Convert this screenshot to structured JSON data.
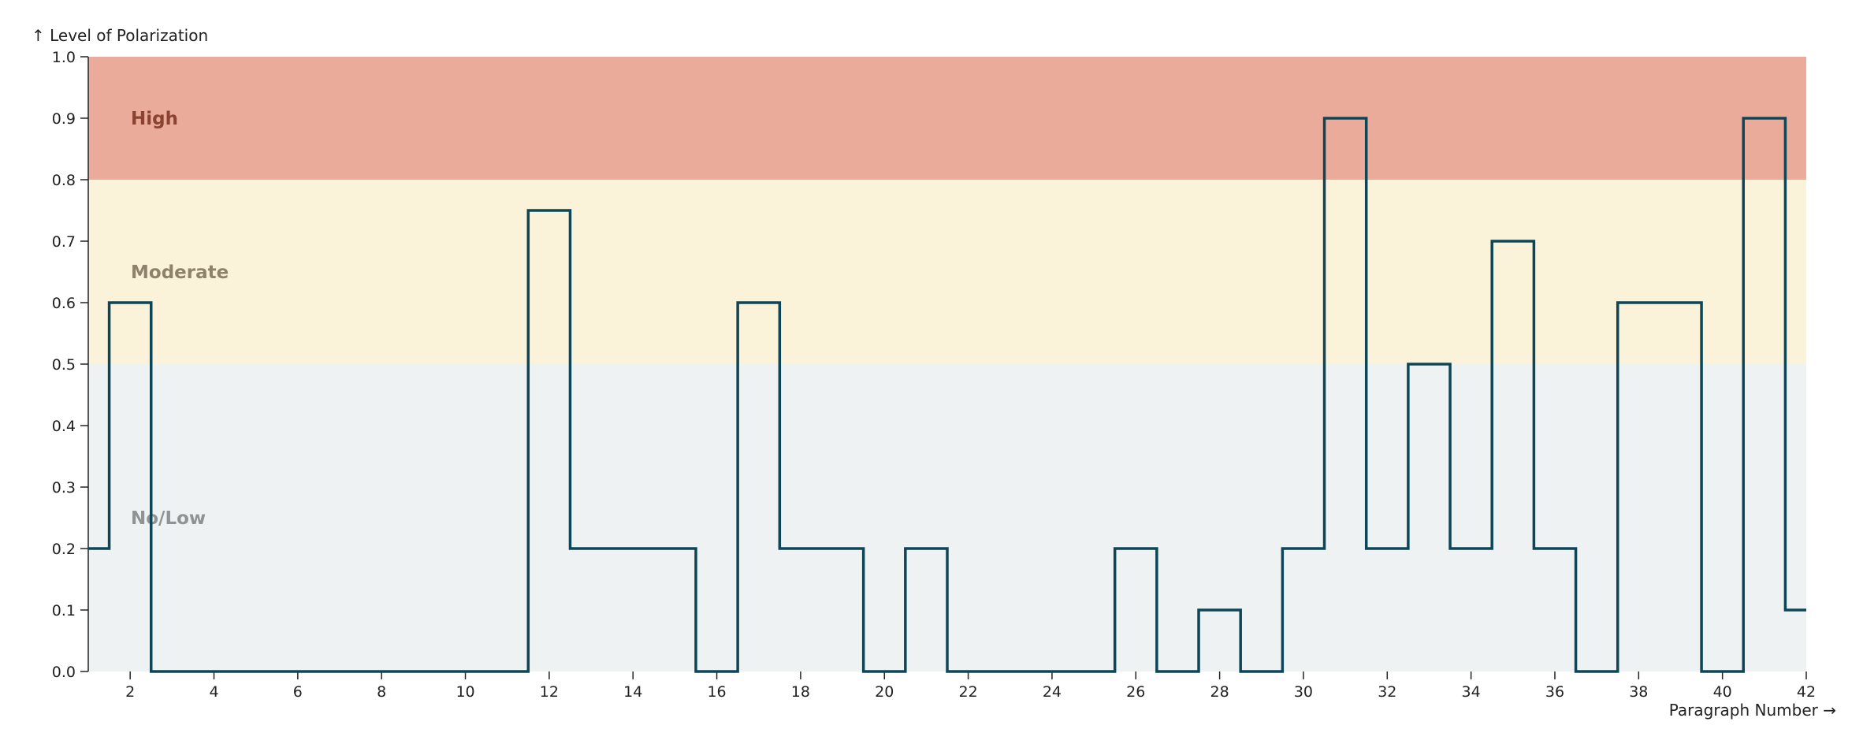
{
  "chart_data": {
    "type": "line",
    "step": true,
    "ylabel": "↑ Level of Polarization",
    "xlabel": "Paragraph Number →",
    "xlim": [
      1,
      42
    ],
    "ylim": [
      0,
      1
    ],
    "xticks": [
      2,
      4,
      6,
      8,
      10,
      12,
      14,
      16,
      18,
      20,
      22,
      24,
      26,
      28,
      30,
      32,
      34,
      36,
      38,
      40,
      42
    ],
    "yticks": [
      "0.0",
      "0.1",
      "0.2",
      "0.3",
      "0.4",
      "0.5",
      "0.6",
      "0.7",
      "0.8",
      "0.9",
      "1.0"
    ],
    "ytick_values": [
      0,
      0.1,
      0.2,
      0.3,
      0.4,
      0.5,
      0.6,
      0.7,
      0.8,
      0.9,
      1.0
    ],
    "bands": [
      {
        "label": "No/Low",
        "from": 0,
        "to": 0.5,
        "color": "#eff2f3",
        "label_color": "#8e9496",
        "label_y": 0.25
      },
      {
        "label": "Moderate",
        "from": 0.5,
        "to": 0.8,
        "color": "#fbf2da",
        "label_color": "#8e826c",
        "label_y": 0.65
      },
      {
        "label": "High",
        "from": 0.8,
        "to": 1.0,
        "color": "#ebab9b",
        "label_color": "#8a4330",
        "label_y": 0.9
      }
    ],
    "x": [
      1,
      2,
      3,
      4,
      5,
      6,
      7,
      8,
      9,
      10,
      11,
      12,
      13,
      14,
      15,
      16,
      17,
      18,
      19,
      20,
      21,
      22,
      23,
      24,
      25,
      26,
      27,
      28,
      29,
      30,
      31,
      32,
      33,
      34,
      35,
      36,
      37,
      38,
      39,
      40,
      41,
      42
    ],
    "values": [
      0.2,
      0.6,
      0,
      0,
      0,
      0,
      0,
      0,
      0,
      0,
      0,
      0.75,
      0.2,
      0.2,
      0.2,
      0,
      0.6,
      0.2,
      0.2,
      0,
      0.2,
      0,
      0,
      0,
      0,
      0.2,
      0,
      0.1,
      0,
      0.2,
      0.9,
      0.2,
      0.5,
      0.2,
      0.7,
      0.2,
      0,
      0.6,
      0.6,
      0,
      0.9,
      0.1
    ],
    "line_color": "#0e4657",
    "grid": false
  }
}
